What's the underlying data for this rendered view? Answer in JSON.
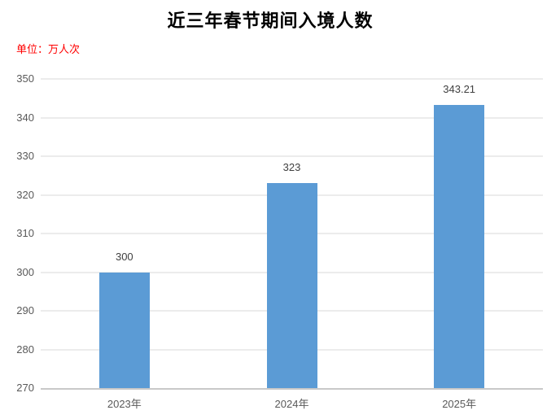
{
  "title": "近三年春节期间入境人数",
  "unit_label": "单位：万人次",
  "colors": {
    "background": "#FFFFFF",
    "bar": "#5B9BD5",
    "gridline": "#D9D9D9",
    "axis_line": "#C9C9C9",
    "tick_text": "#595959",
    "value_label_text": "#404040",
    "unit_text": "#FF0000",
    "title_text": "#000000"
  },
  "chart_data": {
    "type": "bar",
    "title": "近三年春节期间入境人数",
    "categories": [
      "2023年",
      "2024年",
      "2025年"
    ],
    "values": [
      300,
      323,
      343.21
    ],
    "value_labels": [
      "300",
      "323",
      "343.21"
    ],
    "xlabel": "",
    "ylabel": "单位：万人次",
    "ylim": [
      270,
      350
    ],
    "yticks": [
      270,
      280,
      290,
      300,
      310,
      320,
      330,
      340,
      350
    ],
    "grid": true,
    "legend": false
  }
}
